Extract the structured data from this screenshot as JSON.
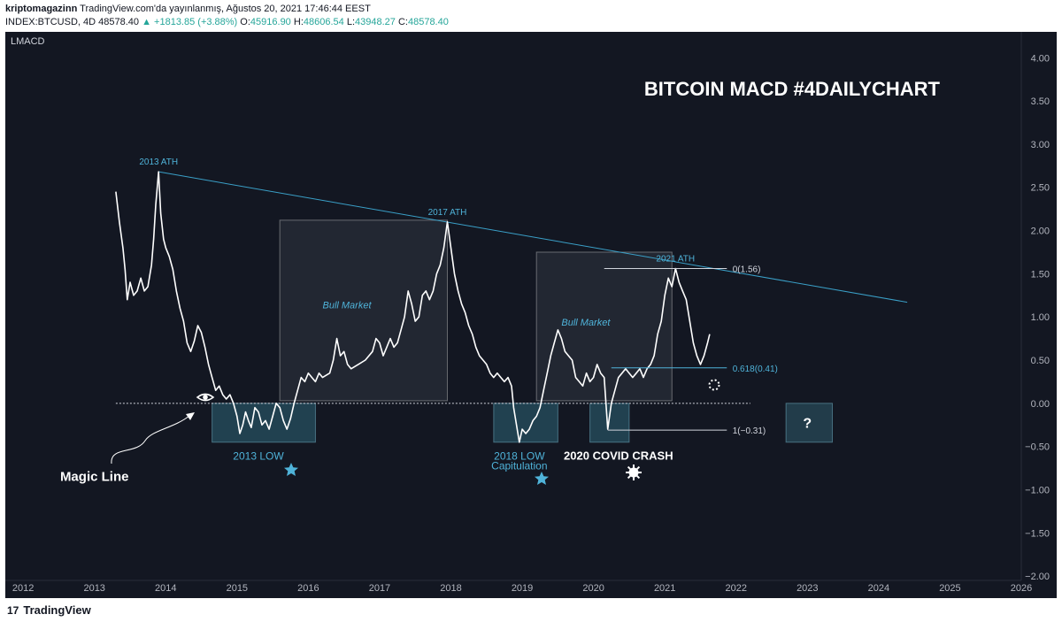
{
  "header": {
    "user": "kriptomagazinn",
    "published": "TradingView.com'da yayınlanmış, Ağustos 20, 2021 17:46:44 EEST",
    "symbol": "INDEX:BTCUSD, 4D",
    "last": "48578.40",
    "change": "▲ +1813.85 (+3.88%)",
    "o_label": "O:",
    "o_value": "45916.90",
    "h_label": "H:",
    "h_value": "48606.54",
    "l_label": "L:",
    "l_value": "43948.27",
    "c_label": "C:",
    "c_value": "48578.40"
  },
  "footer": {
    "brand": "TradingView",
    "brand_mark": "17"
  },
  "colors": {
    "background": "#131722",
    "line": "#ffffff",
    "accent": "#4fb3d9",
    "trend": "#3aa0c8",
    "box_cyan": "#1d4e5c",
    "box_gray": "#2a2e39"
  },
  "chart_data": {
    "type": "line",
    "indicator_label": "LMACD",
    "title": "BITCOIN MACD #4DAILYCHART",
    "x_ticks": [
      "2012",
      "2013",
      "2014",
      "2015",
      "2016",
      "2017",
      "2018",
      "2019",
      "2020",
      "2021",
      "2022",
      "2023",
      "2024",
      "2025",
      "2026"
    ],
    "y_ticks": [
      "4.00",
      "3.50",
      "3.00",
      "2.50",
      "2.00",
      "1.50",
      "1.00",
      "0.50",
      "0.00",
      "−0.50",
      "−1.00",
      "−1.50",
      "−2.00"
    ],
    "xlim": [
      2011.75,
      2026.0
    ],
    "ylim": [
      -2.05,
      4.3
    ],
    "series": [
      {
        "points": [
          [
            2013.3,
            2.45
          ],
          [
            2013.35,
            2.1
          ],
          [
            2013.4,
            1.8
          ],
          [
            2013.43,
            1.55
          ],
          [
            2013.46,
            1.2
          ],
          [
            2013.5,
            1.4
          ],
          [
            2013.55,
            1.25
          ],
          [
            2013.6,
            1.3
          ],
          [
            2013.65,
            1.45
          ],
          [
            2013.7,
            1.3
          ],
          [
            2013.75,
            1.35
          ],
          [
            2013.8,
            1.6
          ],
          [
            2013.83,
            1.9
          ],
          [
            2013.86,
            2.3
          ],
          [
            2013.9,
            2.68
          ],
          [
            2013.93,
            2.2
          ],
          [
            2013.97,
            1.9
          ],
          [
            2014.0,
            1.8
          ],
          [
            2014.05,
            1.7
          ],
          [
            2014.1,
            1.55
          ],
          [
            2014.15,
            1.3
          ],
          [
            2014.2,
            1.1
          ],
          [
            2014.25,
            0.95
          ],
          [
            2014.3,
            0.7
          ],
          [
            2014.35,
            0.6
          ],
          [
            2014.4,
            0.72
          ],
          [
            2014.45,
            0.9
          ],
          [
            2014.5,
            0.82
          ],
          [
            2014.55,
            0.65
          ],
          [
            2014.6,
            0.45
          ],
          [
            2014.65,
            0.3
          ],
          [
            2014.7,
            0.15
          ],
          [
            2014.75,
            0.2
          ],
          [
            2014.8,
            0.1
          ],
          [
            2014.85,
            0.05
          ],
          [
            2014.9,
            0.1
          ],
          [
            2014.95,
            0.0
          ],
          [
            2015.0,
            -0.15
          ],
          [
            2015.04,
            -0.35
          ],
          [
            2015.08,
            -0.25
          ],
          [
            2015.12,
            -0.1
          ],
          [
            2015.16,
            -0.2
          ],
          [
            2015.2,
            -0.28
          ],
          [
            2015.25,
            -0.05
          ],
          [
            2015.3,
            -0.1
          ],
          [
            2015.35,
            -0.25
          ],
          [
            2015.4,
            -0.2
          ],
          [
            2015.45,
            -0.3
          ],
          [
            2015.5,
            -0.15
          ],
          [
            2015.55,
            0.0
          ],
          [
            2015.6,
            -0.05
          ],
          [
            2015.65,
            -0.2
          ],
          [
            2015.7,
            -0.3
          ],
          [
            2015.75,
            -0.18
          ],
          [
            2015.8,
            0.0
          ],
          [
            2015.85,
            0.15
          ],
          [
            2015.9,
            0.3
          ],
          [
            2015.95,
            0.25
          ],
          [
            2016.0,
            0.35
          ],
          [
            2016.05,
            0.3
          ],
          [
            2016.1,
            0.25
          ],
          [
            2016.15,
            0.35
          ],
          [
            2016.2,
            0.3
          ],
          [
            2016.3,
            0.35
          ],
          [
            2016.35,
            0.5
          ],
          [
            2016.4,
            0.75
          ],
          [
            2016.45,
            0.55
          ],
          [
            2016.5,
            0.6
          ],
          [
            2016.55,
            0.45
          ],
          [
            2016.6,
            0.4
          ],
          [
            2016.7,
            0.45
          ],
          [
            2016.8,
            0.5
          ],
          [
            2016.9,
            0.6
          ],
          [
            2016.95,
            0.75
          ],
          [
            2017.0,
            0.7
          ],
          [
            2017.05,
            0.55
          ],
          [
            2017.1,
            0.65
          ],
          [
            2017.15,
            0.75
          ],
          [
            2017.2,
            0.65
          ],
          [
            2017.25,
            0.7
          ],
          [
            2017.3,
            0.85
          ],
          [
            2017.35,
            1.0
          ],
          [
            2017.4,
            1.3
          ],
          [
            2017.45,
            1.15
          ],
          [
            2017.5,
            0.95
          ],
          [
            2017.55,
            1.0
          ],
          [
            2017.6,
            1.25
          ],
          [
            2017.65,
            1.3
          ],
          [
            2017.7,
            1.2
          ],
          [
            2017.75,
            1.3
          ],
          [
            2017.8,
            1.5
          ],
          [
            2017.85,
            1.6
          ],
          [
            2017.9,
            1.8
          ],
          [
            2017.95,
            2.1
          ],
          [
            2018.0,
            1.8
          ],
          [
            2018.05,
            1.5
          ],
          [
            2018.1,
            1.3
          ],
          [
            2018.15,
            1.15
          ],
          [
            2018.2,
            1.05
          ],
          [
            2018.25,
            0.9
          ],
          [
            2018.3,
            0.8
          ],
          [
            2018.35,
            0.65
          ],
          [
            2018.4,
            0.55
          ],
          [
            2018.45,
            0.5
          ],
          [
            2018.5,
            0.45
          ],
          [
            2018.55,
            0.35
          ],
          [
            2018.6,
            0.3
          ],
          [
            2018.65,
            0.35
          ],
          [
            2018.7,
            0.3
          ],
          [
            2018.75,
            0.25
          ],
          [
            2018.8,
            0.3
          ],
          [
            2018.85,
            0.2
          ],
          [
            2018.88,
            -0.05
          ],
          [
            2018.92,
            -0.25
          ],
          [
            2018.96,
            -0.45
          ],
          [
            2019.0,
            -0.3
          ],
          [
            2019.05,
            -0.35
          ],
          [
            2019.1,
            -0.3
          ],
          [
            2019.15,
            -0.2
          ],
          [
            2019.2,
            -0.15
          ],
          [
            2019.25,
            -0.05
          ],
          [
            2019.3,
            0.15
          ],
          [
            2019.35,
            0.35
          ],
          [
            2019.4,
            0.55
          ],
          [
            2019.45,
            0.7
          ],
          [
            2019.5,
            0.85
          ],
          [
            2019.55,
            0.75
          ],
          [
            2019.6,
            0.6
          ],
          [
            2019.65,
            0.55
          ],
          [
            2019.7,
            0.5
          ],
          [
            2019.75,
            0.3
          ],
          [
            2019.8,
            0.25
          ],
          [
            2019.85,
            0.2
          ],
          [
            2019.9,
            0.35
          ],
          [
            2019.95,
            0.25
          ],
          [
            2020.0,
            0.3
          ],
          [
            2020.05,
            0.45
          ],
          [
            2020.1,
            0.35
          ],
          [
            2020.15,
            0.3
          ],
          [
            2020.2,
            -0.3
          ],
          [
            2020.25,
            0.0
          ],
          [
            2020.3,
            0.15
          ],
          [
            2020.35,
            0.3
          ],
          [
            2020.4,
            0.35
          ],
          [
            2020.45,
            0.4
          ],
          [
            2020.5,
            0.35
          ],
          [
            2020.55,
            0.3
          ],
          [
            2020.6,
            0.35
          ],
          [
            2020.65,
            0.4
          ],
          [
            2020.7,
            0.3
          ],
          [
            2020.75,
            0.4
          ],
          [
            2020.8,
            0.45
          ],
          [
            2020.85,
            0.55
          ],
          [
            2020.9,
            0.8
          ],
          [
            2020.95,
            0.95
          ],
          [
            2021.0,
            1.25
          ],
          [
            2021.05,
            1.45
          ],
          [
            2021.1,
            1.35
          ],
          [
            2021.15,
            1.56
          ],
          [
            2021.2,
            1.4
          ],
          [
            2021.25,
            1.3
          ],
          [
            2021.3,
            1.2
          ],
          [
            2021.35,
            0.95
          ],
          [
            2021.4,
            0.7
          ],
          [
            2021.45,
            0.55
          ],
          [
            2021.5,
            0.45
          ],
          [
            2021.55,
            0.55
          ],
          [
            2021.6,
            0.7
          ],
          [
            2021.63,
            0.8
          ]
        ]
      }
    ],
    "magic_line_y": 0.0,
    "fib_levels": [
      {
        "label": "0(1.56)",
        "value": 1.56
      },
      {
        "label": "0.618(0.41)",
        "value": 0.41
      },
      {
        "label": "1(−0.31)",
        "value": -0.31
      }
    ],
    "annotations": [
      {
        "text": "2013 ATH",
        "x": 2013.9,
        "y": 2.68
      },
      {
        "text": "2017 ATH",
        "x": 2017.95,
        "y": 2.1
      },
      {
        "text": "2021 ATH",
        "x": 2021.15,
        "y": 1.56
      },
      {
        "text": "2013 LOW",
        "x": 2015.3,
        "y": -0.55
      },
      {
        "text": "2018 LOW",
        "x": 2018.96,
        "y": -0.55
      },
      {
        "text": "Capitulation",
        "x": 2018.96,
        "y": -0.66
      },
      {
        "text": "2020 COVID CRASH",
        "x": 2020.35,
        "y": -0.55
      },
      {
        "text": "Bull Market",
        "x": 2016.2,
        "y": 1.1
      },
      {
        "text": "Bull Market",
        "x": 2019.55,
        "y": 0.9
      },
      {
        "text": "Magic Line",
        "x": 2013.0,
        "y": -0.9
      },
      {
        "text": "?",
        "x": 2023.0,
        "y": -0.22
      }
    ],
    "trendline": [
      [
        2013.9,
        2.68
      ],
      [
        2024.4,
        1.17
      ]
    ],
    "boxes": [
      {
        "kind": "lows",
        "x0": 2014.65,
        "x1": 2016.1,
        "y0": -0.45,
        "y1": 0.0
      },
      {
        "kind": "lows",
        "x0": 2018.6,
        "x1": 2019.5,
        "y0": -0.45,
        "y1": 0.0
      },
      {
        "kind": "lows",
        "x0": 2019.95,
        "x1": 2020.5,
        "y0": -0.45,
        "y1": 0.0
      },
      {
        "kind": "future",
        "x0": 2022.7,
        "x1": 2023.35,
        "y0": -0.45,
        "y1": 0.0
      },
      {
        "kind": "bull",
        "x0": 2015.6,
        "x1": 2017.95,
        "y0": 0.03,
        "y1": 2.12
      },
      {
        "kind": "bull",
        "x0": 2019.2,
        "x1": 2021.1,
        "y0": 0.03,
        "y1": 1.75
      }
    ]
  }
}
